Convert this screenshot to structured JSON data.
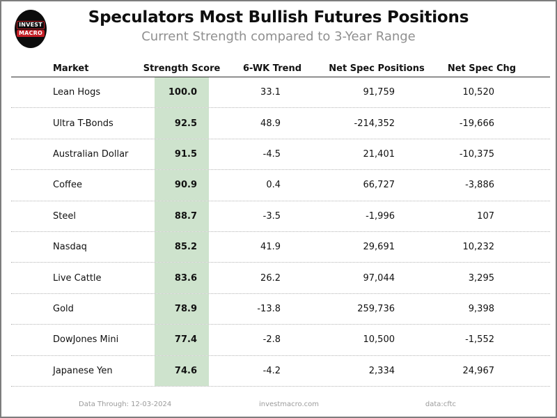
{
  "header": {
    "title": "Speculators Most Bullish Futures Positions",
    "subtitle": "Current Strength compared to 3-Year Range"
  },
  "logo": {
    "line1": "INVEST",
    "line2": "MACRO"
  },
  "table": {
    "columns": [
      "Market",
      "Strength Score",
      "6-WK Trend",
      "Net Spec Positions",
      "Net Spec Chg"
    ],
    "rows": [
      {
        "market": "Lean Hogs",
        "score": "100.0",
        "trend": "33.1",
        "positions": "91,759",
        "change": "10,520"
      },
      {
        "market": "Ultra T-Bonds",
        "score": "92.5",
        "trend": "48.9",
        "positions": "-214,352",
        "change": "-19,666"
      },
      {
        "market": "Australian Dollar",
        "score": "91.5",
        "trend": "-4.5",
        "positions": "21,401",
        "change": "-10,375"
      },
      {
        "market": "Coffee",
        "score": "90.9",
        "trend": "0.4",
        "positions": "66,727",
        "change": "-3,886"
      },
      {
        "market": "Steel",
        "score": "88.7",
        "trend": "-3.5",
        "positions": "-1,996",
        "change": "107"
      },
      {
        "market": "Nasdaq",
        "score": "85.2",
        "trend": "41.9",
        "positions": "29,691",
        "change": "10,232"
      },
      {
        "market": "Live Cattle",
        "score": "83.6",
        "trend": "26.2",
        "positions": "97,044",
        "change": "3,295"
      },
      {
        "market": "Gold",
        "score": "78.9",
        "trend": "-13.8",
        "positions": "259,736",
        "change": "9,398"
      },
      {
        "market": "DowJones Mini",
        "score": "77.4",
        "trend": "-2.8",
        "positions": "10,500",
        "change": "-1,552"
      },
      {
        "market": "Japanese Yen",
        "score": "74.6",
        "trend": "-4.2",
        "positions": "2,334",
        "change": "24,967"
      }
    ]
  },
  "footer": {
    "data_through": "Data Through: 12-03-2024",
    "website": "investmacro.com",
    "source": "data:cftc"
  },
  "colors": {
    "score_highlight": "#cee3cd",
    "logo_red": "#c41e25",
    "subtitle_gray": "#8f8f8f",
    "border_gray": "#7d7d7d"
  },
  "chart_data": {
    "type": "table",
    "title": "Speculators Most Bullish Futures Positions",
    "subtitle": "Current Strength compared to 3-Year Range",
    "columns": [
      "Market",
      "Strength Score",
      "6-WK Trend",
      "Net Spec Positions",
      "Net Spec Chg"
    ],
    "rows": [
      [
        "Lean Hogs",
        100.0,
        33.1,
        91759,
        10520
      ],
      [
        "Ultra T-Bonds",
        92.5,
        48.9,
        -214352,
        -19666
      ],
      [
        "Australian Dollar",
        91.5,
        -4.5,
        21401,
        -10375
      ],
      [
        "Coffee",
        90.9,
        0.4,
        66727,
        -3886
      ],
      [
        "Steel",
        88.7,
        -3.5,
        -1996,
        107
      ],
      [
        "Nasdaq",
        85.2,
        41.9,
        29691,
        10232
      ],
      [
        "Live Cattle",
        83.6,
        26.2,
        97044,
        3295
      ],
      [
        "Gold",
        78.9,
        -13.8,
        259736,
        9398
      ],
      [
        "DowJones Mini",
        77.4,
        -2.8,
        10500,
        -1552
      ],
      [
        "Japanese Yen",
        74.6,
        -4.2,
        2334,
        24967
      ]
    ],
    "layout": {
      "score_column_highlighted": true,
      "row_separator": "dotted",
      "legend_position": "none"
    }
  }
}
